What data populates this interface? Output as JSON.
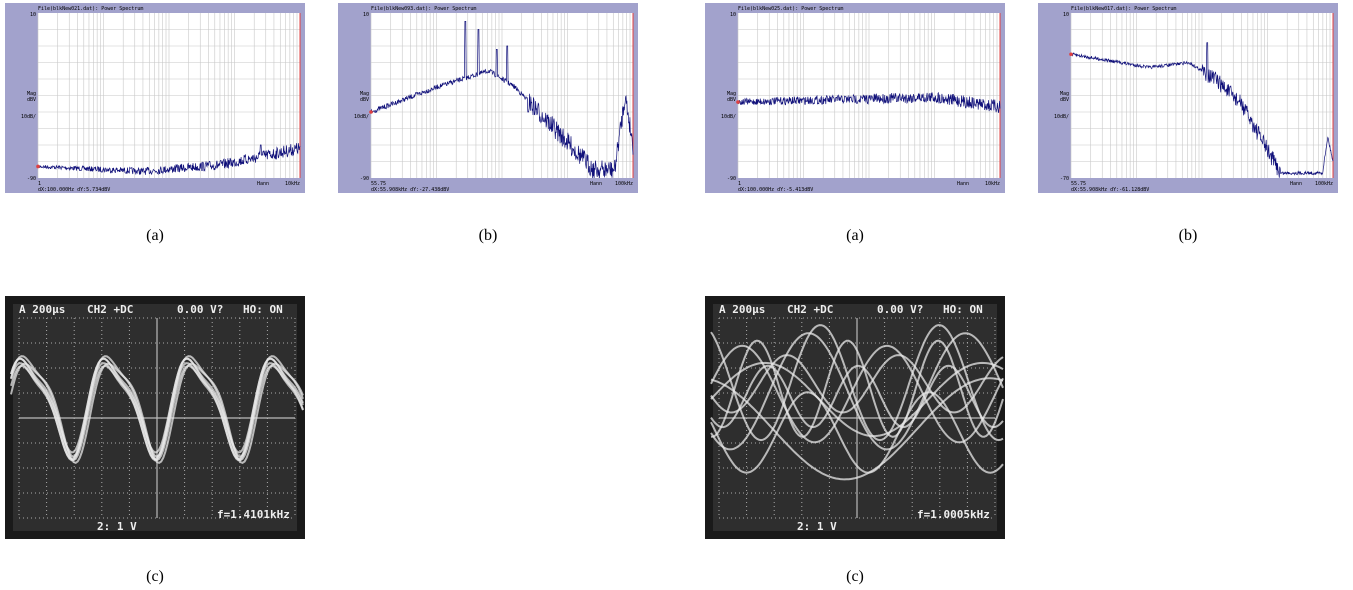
{
  "spectra": [
    {
      "title": "File(blkNew021.dat): Power Spectrum",
      "y_top": "10",
      "y_unit": [
        "Mag",
        "dBV"
      ],
      "y_scale": "10dB/",
      "y_bottom": "-90",
      "x_left": "1",
      "window": "Hann",
      "x_right": "10kHz",
      "readout": "dX:100.000Hz dY:5.734dBV",
      "caption": "(a)"
    },
    {
      "title": "File(blkNew093.dat): Power Spectrum",
      "y_top": "10",
      "y_unit": [
        "Mag",
        "dBV"
      ],
      "y_scale": "10dB/",
      "y_bottom": "-90",
      "x_left": "55.75",
      "window": "Hann",
      "x_right": "100kHz",
      "readout": "dX:55.908kHz dY:-27.438dBV",
      "caption": "(b)"
    },
    {
      "title": "File(blkNew025.dat): Power Spectrum",
      "y_top": "10",
      "y_unit": [
        "Mag",
        "dBV"
      ],
      "y_scale": "10dB/",
      "y_bottom": "-90",
      "x_left": "1",
      "window": "Hann",
      "x_right": "10kHz",
      "readout": "dX:100.000Hz dY:-5.413dBV",
      "caption": "(a)"
    },
    {
      "title": "File(blkNew017.dat): Power Spectrum",
      "y_top": "10",
      "y_unit": [
        "Mag",
        "dBV"
      ],
      "y_scale": "10dB/",
      "y_bottom": "-70",
      "x_left": "55.75",
      "window": "Hann",
      "x_right": "100kHz",
      "readout": "dX:55.908kHz dY:-61.128dBV",
      "caption": "(b)"
    }
  ],
  "scopes": [
    {
      "header": [
        "A 200µs",
        "CH2 +DC",
        "0.00 V?",
        "HO: ON"
      ],
      "footer": "2: 1 V",
      "readout": "f=1.4101kHz",
      "caption": "(c)"
    },
    {
      "header": [
        "A 200µs",
        "CH2 +DC",
        "0.00 V?",
        "HO: ON"
      ],
      "footer": "2: 1 V",
      "readout": "f=1.0005kHz",
      "caption": "(c)"
    }
  ]
}
